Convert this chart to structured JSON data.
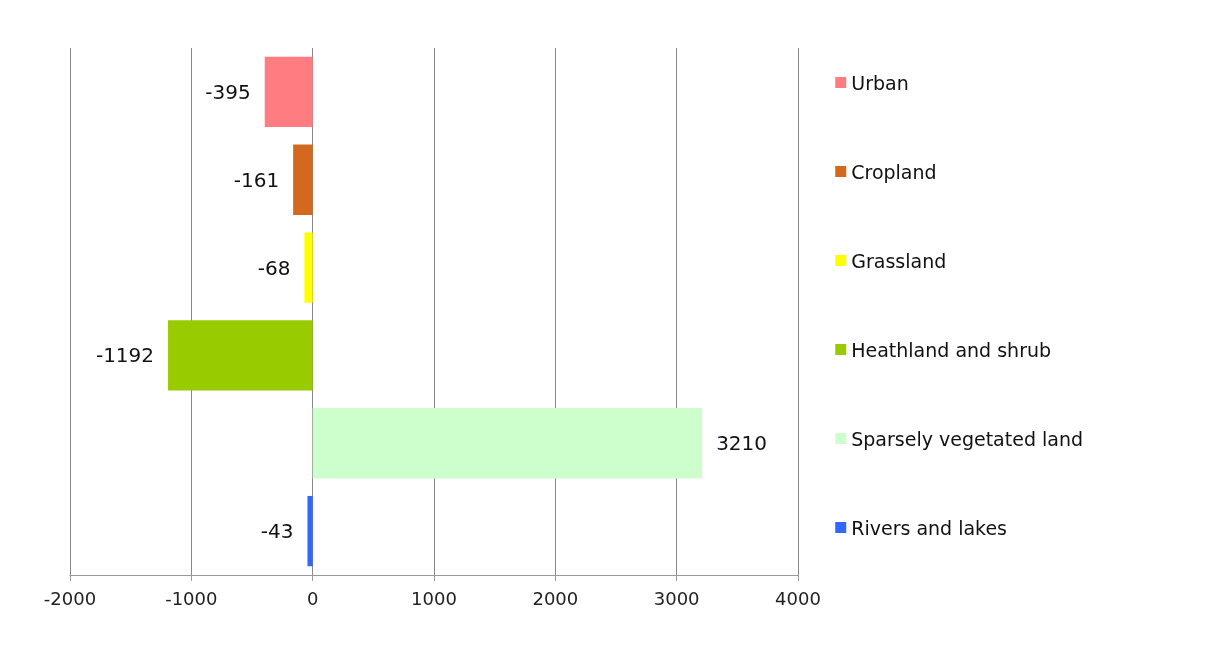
{
  "chart_data": {
    "type": "bar",
    "orientation": "horizontal",
    "stacked": true,
    "categories": [
      null,
      null,
      null,
      null,
      null,
      null
    ],
    "series": [
      {
        "name": "Urban",
        "color": "#ff7c80",
        "values": [
          -395,
          null,
          null,
          null,
          null,
          null
        ]
      },
      {
        "name": "Cropland",
        "color": "#d2691e",
        "values": [
          null,
          -161,
          null,
          null,
          null,
          null
        ]
      },
      {
        "name": "Grassland",
        "color": "#ffff00",
        "values": [
          null,
          null,
          -68,
          null,
          null,
          null
        ]
      },
      {
        "name": "Heathland and shrub",
        "color": "#99cc00",
        "values": [
          null,
          null,
          null,
          -1192,
          null,
          null
        ]
      },
      {
        "name": "Sparsely vegetated land",
        "color": "#ccffcc",
        "values": [
          null,
          null,
          null,
          null,
          3210,
          null
        ]
      },
      {
        "name": "Rivers and lakes",
        "color": "#3366ff",
        "values": [
          null,
          null,
          null,
          null,
          null,
          -43
        ]
      }
    ],
    "xlim": [
      -2000,
      4000
    ],
    "xticks": [
      -2000,
      -1000,
      0,
      1000,
      2000,
      3000,
      4000
    ],
    "grid": "x",
    "legend": "right",
    "data_labels": true
  }
}
